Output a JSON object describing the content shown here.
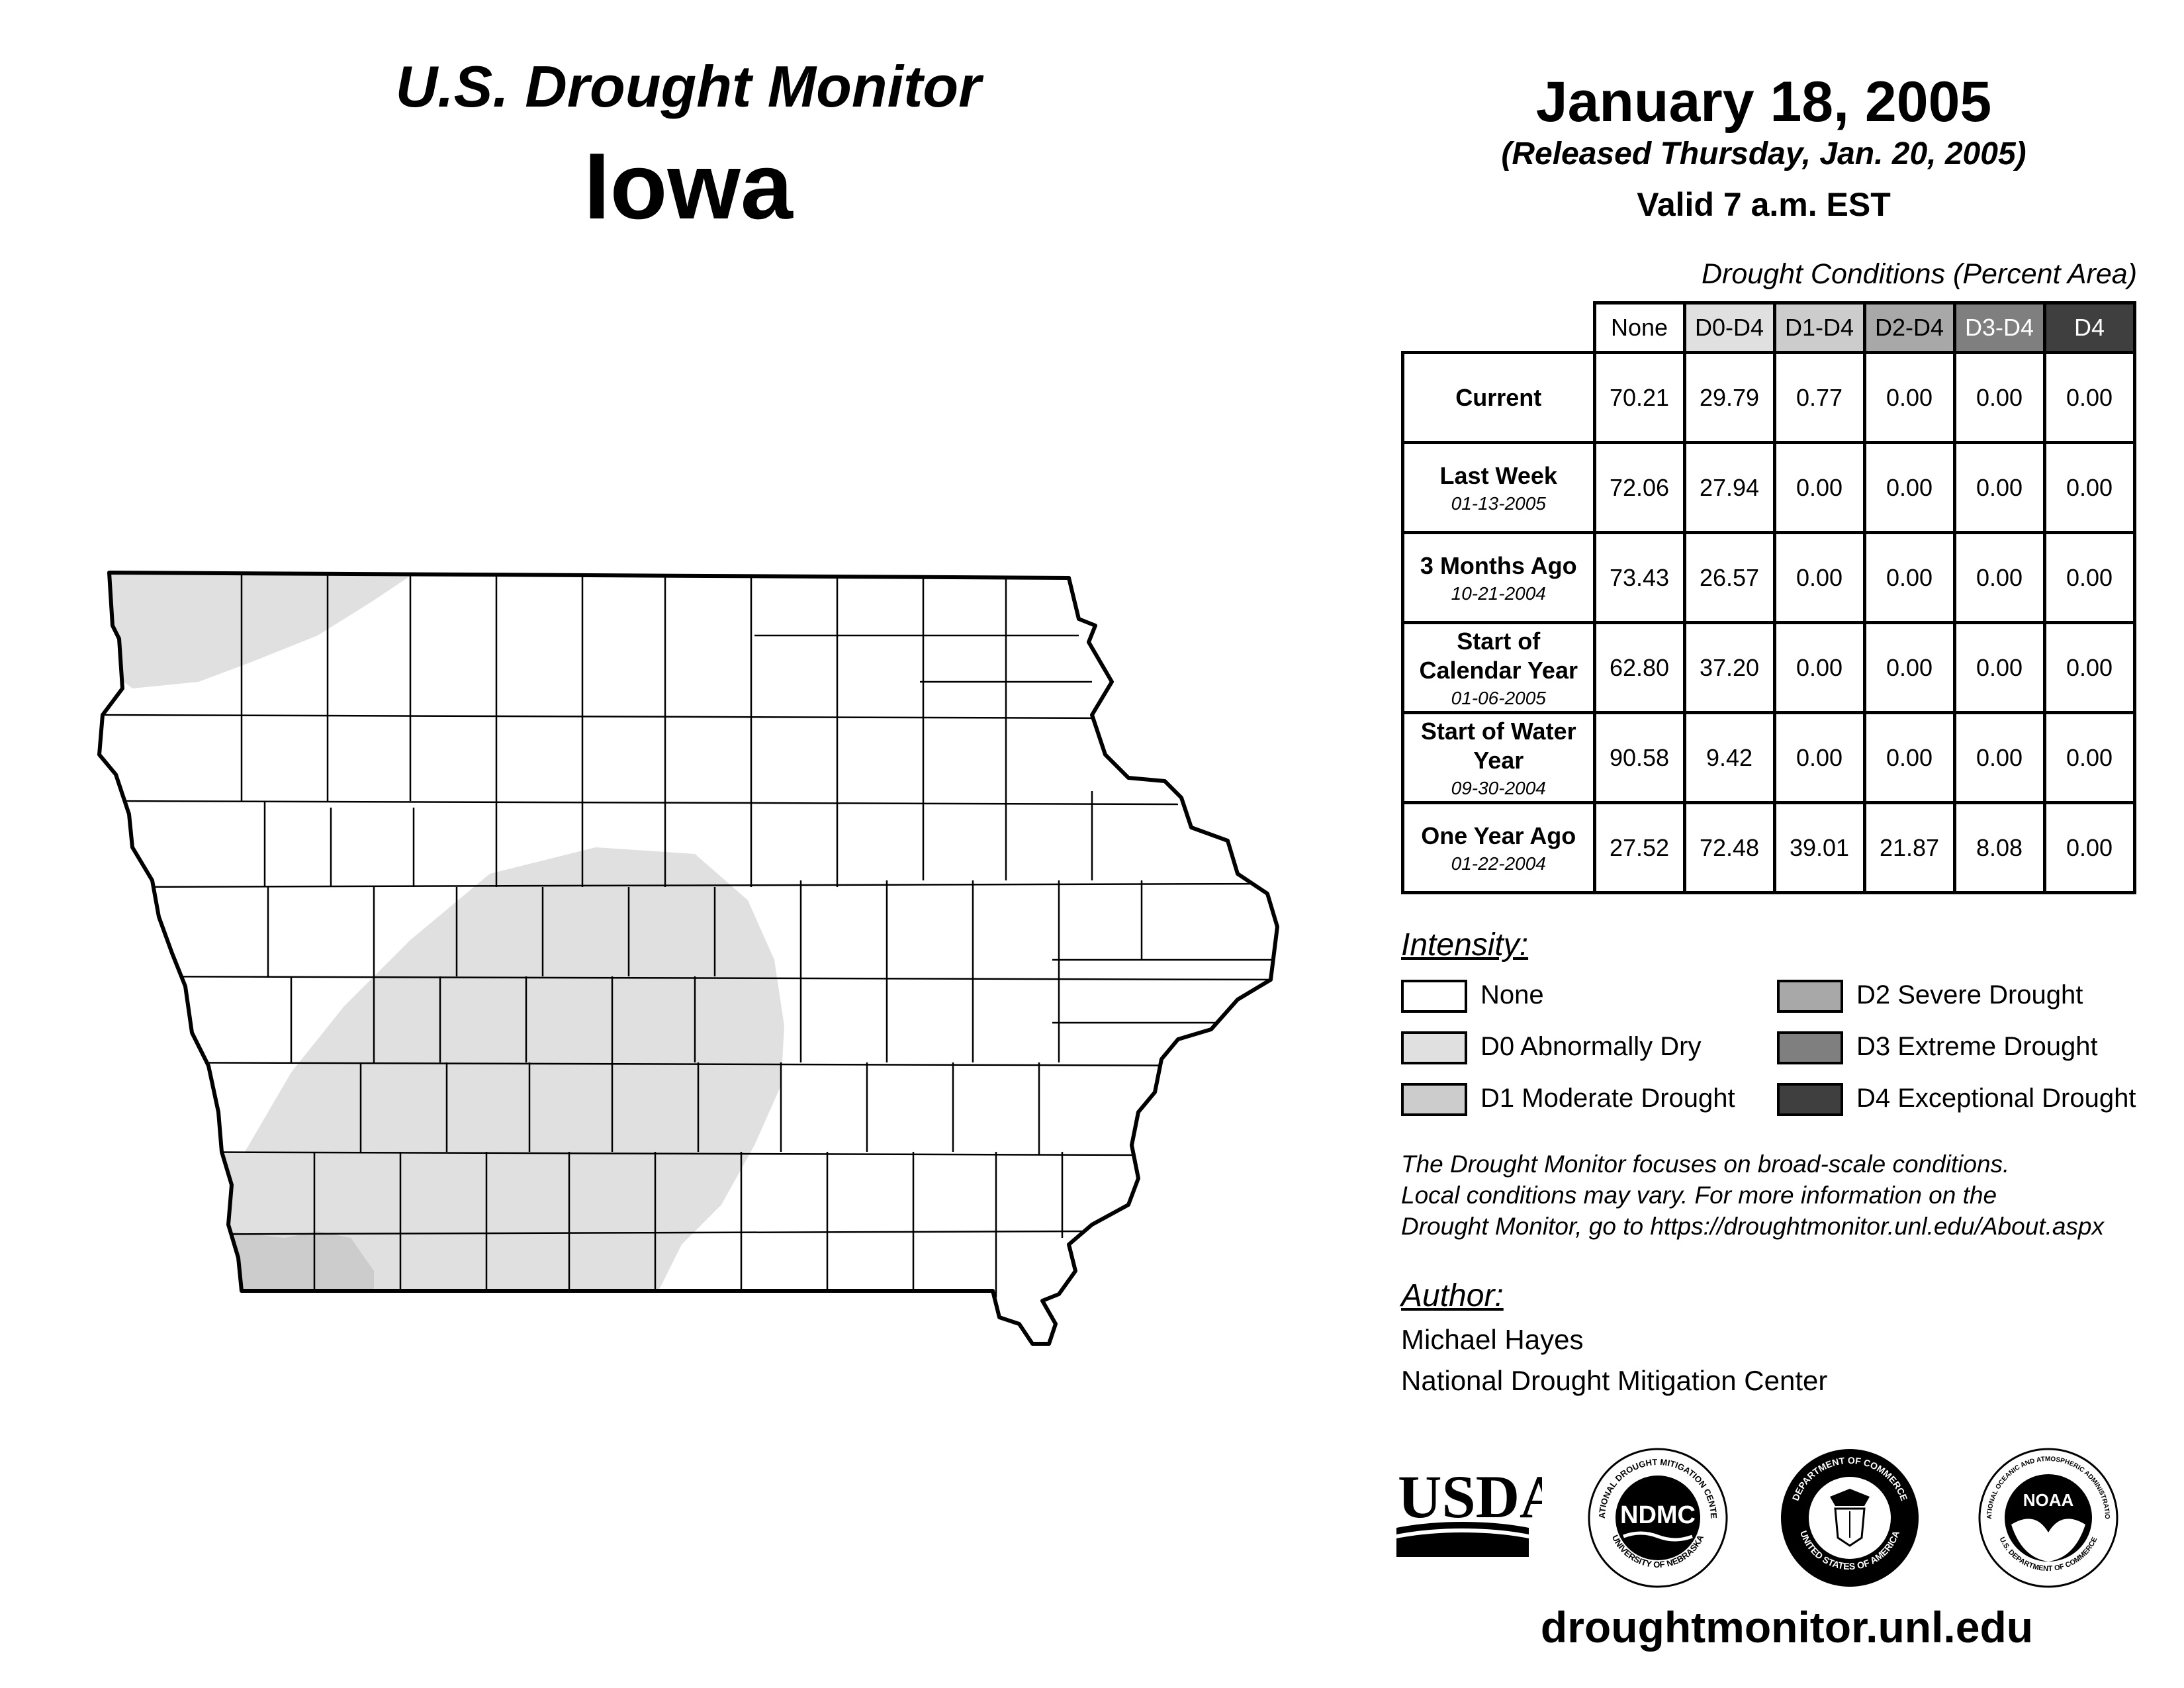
{
  "header": {
    "title": "U.S. Drought Monitor",
    "state": "Iowa",
    "date": "January 18, 2005",
    "released": "(Released Thursday, Jan. 20, 2005)",
    "valid": "Valid 7 a.m. EST"
  },
  "table": {
    "caption": "Drought Conditions (Percent Area)",
    "columns": [
      "None",
      "D0-D4",
      "D1-D4",
      "D2-D4",
      "D3-D4",
      "D4"
    ],
    "column_colors": [
      "#ffffff",
      "#e0e0e0",
      "#cccccc",
      "#a8a8a8",
      "#7f7f7f",
      "#3f3f3f"
    ],
    "rows": [
      {
        "label": "Current",
        "date": "",
        "values": [
          "70.21",
          "29.79",
          "0.77",
          "0.00",
          "0.00",
          "0.00"
        ]
      },
      {
        "label": "Last Week",
        "date": "01-13-2005",
        "values": [
          "72.06",
          "27.94",
          "0.00",
          "0.00",
          "0.00",
          "0.00"
        ]
      },
      {
        "label": "3 Months Ago",
        "date": "10-21-2004",
        "values": [
          "73.43",
          "26.57",
          "0.00",
          "0.00",
          "0.00",
          "0.00"
        ]
      },
      {
        "label": "Start of Calendar Year",
        "date": "01-06-2005",
        "values": [
          "62.80",
          "37.20",
          "0.00",
          "0.00",
          "0.00",
          "0.00"
        ]
      },
      {
        "label": "Start of Water Year",
        "date": "09-30-2004",
        "values": [
          "90.58",
          "9.42",
          "0.00",
          "0.00",
          "0.00",
          "0.00"
        ]
      },
      {
        "label": "One Year Ago",
        "date": "01-22-2004",
        "values": [
          "27.52",
          "72.48",
          "39.01",
          "21.87",
          "8.08",
          "0.00"
        ]
      }
    ]
  },
  "legend": {
    "title": "Intensity:",
    "items": [
      {
        "label": "None",
        "color": "#ffffff"
      },
      {
        "label": "D0 Abnormally Dry",
        "color": "#e0e0e0"
      },
      {
        "label": "D1 Moderate Drought",
        "color": "#cccccc"
      },
      {
        "label": "D2 Severe Drought",
        "color": "#a8a8a8"
      },
      {
        "label": "D3 Extreme Drought",
        "color": "#7f7f7f"
      },
      {
        "label": "D4 Exceptional Drought",
        "color": "#3f3f3f"
      }
    ]
  },
  "note": {
    "line1": "The Drought Monitor focuses on broad-scale conditions.",
    "line2": "Local conditions may vary. For more information on the",
    "line3": "Drought Monitor, go to https://droughtmonitor.unl.edu/About.aspx"
  },
  "author": {
    "title": "Author:",
    "name": "Michael Hayes",
    "org": "National Drought Mitigation Center"
  },
  "logos": {
    "usda": "USDA",
    "ndmc": "NDMC",
    "ndmc_ring_top": "NATIONAL DROUGHT MITIGATION CENTER",
    "ndmc_ring_bottom": "UNIVERSITY OF NEBRASKA",
    "commerce_ring_top": "DEPARTMENT OF COMMERCE",
    "commerce_ring_bottom": "UNITED STATES OF AMERICA",
    "noaa": "NOAA",
    "noaa_ring_top": "NATIONAL OCEANIC AND ATMOSPHERIC ADMINISTRATION",
    "noaa_ring_bottom": "U.S. DEPARTMENT OF COMMERCE"
  },
  "website": "droughtmonitor.unl.edu",
  "map_colors": {
    "d0": "#e0e0e0",
    "d1": "#cccccc",
    "outline": "#000000"
  }
}
